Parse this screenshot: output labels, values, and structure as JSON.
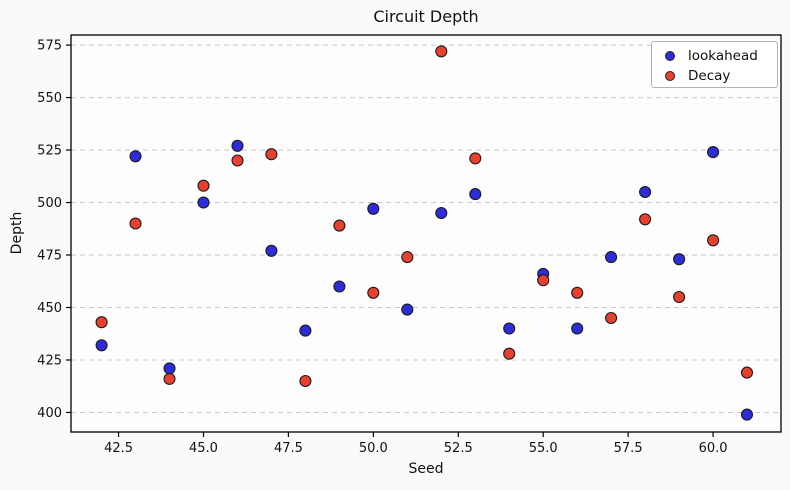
{
  "chart_data": {
    "type": "scatter",
    "title": "Circuit Depth",
    "xlabel": "Seed",
    "ylabel": "Depth",
    "xlim": [
      41.1,
      62.0
    ],
    "ylim": [
      390.7,
      579.8
    ],
    "x_ticks": [
      42.5,
      45.0,
      47.5,
      50.0,
      52.5,
      55.0,
      57.5,
      60.0
    ],
    "x_tick_labels": [
      "42.5",
      "45.0",
      "47.5",
      "50.0",
      "52.5",
      "55.0",
      "57.5",
      "60.0"
    ],
    "y_ticks": [
      400,
      425,
      450,
      475,
      500,
      525,
      550,
      575
    ],
    "y_tick_labels": [
      "400",
      "425",
      "450",
      "475",
      "500",
      "525",
      "550",
      "575"
    ],
    "grid": "horizontal-dashed",
    "grid_color": "#cdc6ce",
    "legend_position": "upper-right",
    "marker_edge_color": "#1c1c1c",
    "series": [
      {
        "name": "lookahead",
        "color": "#2c2cd9",
        "x": [
          42,
          43,
          44,
          45,
          46,
          47,
          48,
          49,
          50,
          51,
          52,
          53,
          54,
          55,
          56,
          57,
          58,
          59,
          60,
          61
        ],
        "y": [
          432,
          522,
          421,
          500,
          527,
          477,
          439,
          460,
          497,
          449,
          495,
          504,
          440,
          466,
          440,
          474,
          505,
          473,
          524,
          399
        ]
      },
      {
        "name": "Decay",
        "color": "#e8402e",
        "x": [
          42,
          43,
          44,
          45,
          46,
          47,
          48,
          49,
          50,
          51,
          52,
          53,
          54,
          55,
          56,
          57,
          58,
          59,
          60,
          61
        ],
        "y": [
          443,
          490,
          416,
          508,
          520,
          523,
          415,
          489,
          457,
          474,
          572,
          521,
          428,
          463,
          457,
          445,
          492,
          455,
          482,
          419
        ]
      }
    ]
  }
}
